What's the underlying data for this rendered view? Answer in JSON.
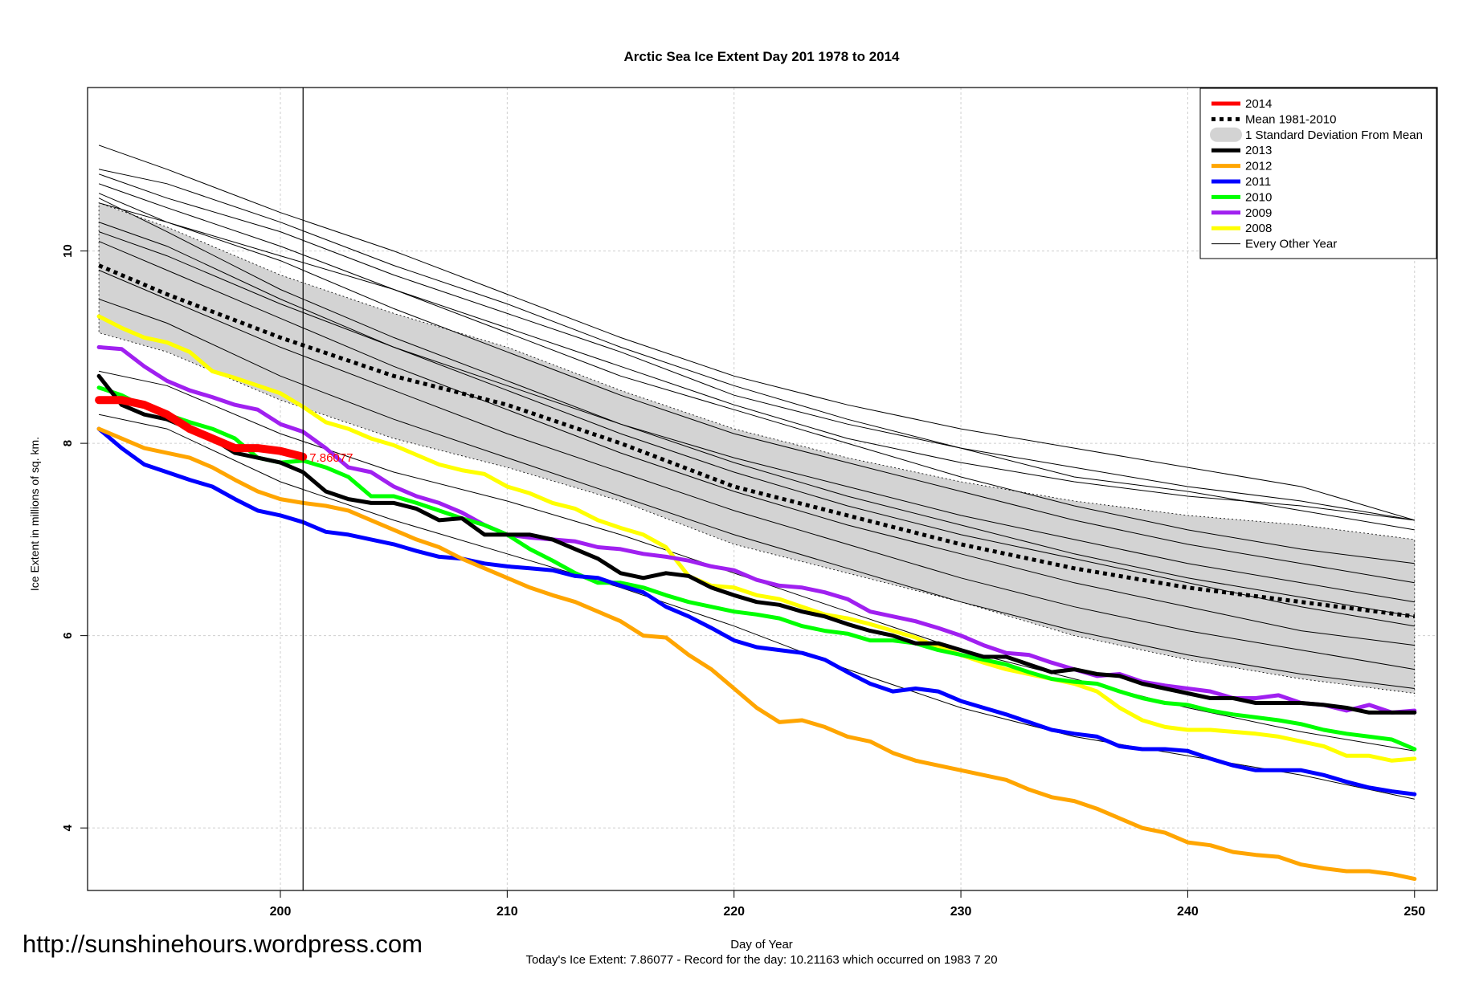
{
  "chart_data": {
    "type": "line",
    "title": "Arctic Sea Ice Extent Day 201 1978 to 2014",
    "xlabel": "Day of Year",
    "ylabel": "Ice Extent in millions of sq. km.",
    "caption": "Today's Ice Extent: 7.86077  - Record for the day: 10.21163 which occurred on 1983 7 20",
    "xlim": [
      191.5,
      251
    ],
    "ylim": [
      3.35,
      11.7
    ],
    "x_ticks": [
      200,
      210,
      220,
      230,
      240,
      250
    ],
    "y_ticks": [
      4,
      6,
      8,
      10
    ],
    "grid": true,
    "legend_position": "top-right",
    "current_day": 201,
    "current_value_label": "7.86077",
    "legend": [
      {
        "label": "2014",
        "color": "#ff0000",
        "style": "thick"
      },
      {
        "label": "Mean 1981-2010",
        "color": "#000000",
        "style": "dotted"
      },
      {
        "label": "1 Standard Deviation From Mean",
        "color": "#d3d3d3",
        "style": "band"
      },
      {
        "label": "2013",
        "color": "#000000",
        "style": "thick"
      },
      {
        "label": "2012",
        "color": "#ffa500",
        "style": "thick"
      },
      {
        "label": "2011",
        "color": "#0000ff",
        "style": "thick"
      },
      {
        "label": "2010",
        "color": "#00ff00",
        "style": "thick"
      },
      {
        "label": "2009",
        "color": "#a020f0",
        "style": "thick"
      },
      {
        "label": "2008",
        "color": "#ffff00",
        "style": "thick"
      },
      {
        "label": "Every Other Year",
        "color": "#000000",
        "style": "thin"
      }
    ],
    "mean": {
      "name": "Mean 1981-2010",
      "x": [
        192,
        195,
        200,
        205,
        210,
        215,
        220,
        225,
        230,
        235,
        240,
        245,
        250
      ],
      "values": [
        9.85,
        9.55,
        9.1,
        8.7,
        8.4,
        8.0,
        7.55,
        7.25,
        6.95,
        6.7,
        6.5,
        6.35,
        6.2
      ]
    },
    "std_band": {
      "x": [
        192,
        195,
        200,
        205,
        210,
        215,
        220,
        225,
        230,
        235,
        240,
        245,
        250
      ],
      "upper": [
        10.5,
        10.25,
        9.75,
        9.35,
        9.0,
        8.55,
        8.15,
        7.85,
        7.6,
        7.4,
        7.25,
        7.15,
        7.0
      ],
      "lower": [
        9.15,
        8.95,
        8.45,
        8.05,
        7.75,
        7.4,
        6.95,
        6.65,
        6.35,
        6.0,
        5.75,
        5.55,
        5.4
      ]
    },
    "series": [
      {
        "name": "2014",
        "color": "#ff0000",
        "x": [
          192,
          193,
          194,
          195,
          196,
          197,
          198,
          199,
          200,
          201
        ],
        "values": [
          8.45,
          8.45,
          8.4,
          8.3,
          8.15,
          8.05,
          7.95,
          7.95,
          7.92,
          7.86
        ]
      },
      {
        "name": "2013",
        "color": "#000000",
        "x": [
          192,
          193,
          194,
          195,
          196,
          197,
          198,
          199,
          200,
          201,
          202,
          203,
          204,
          205,
          206,
          207,
          208,
          209,
          210,
          211,
          212,
          213,
          214,
          215,
          216,
          217,
          218,
          219,
          220,
          221,
          222,
          223,
          224,
          225,
          226,
          227,
          228,
          229,
          230,
          231,
          232,
          233,
          234,
          235,
          236,
          237,
          238,
          239,
          240,
          241,
          242,
          243,
          244,
          245,
          246,
          247,
          248,
          249,
          250
        ],
        "values": [
          8.7,
          8.4,
          8.3,
          8.25,
          8.15,
          8.05,
          7.9,
          7.85,
          7.8,
          7.7,
          7.5,
          7.42,
          7.38,
          7.38,
          7.32,
          7.2,
          7.22,
          7.05,
          7.05,
          7.05,
          7.0,
          6.9,
          6.8,
          6.65,
          6.6,
          6.65,
          6.62,
          6.5,
          6.42,
          6.35,
          6.32,
          6.25,
          6.2,
          6.12,
          6.05,
          6.0,
          5.92,
          5.92,
          5.85,
          5.78,
          5.78,
          5.7,
          5.62,
          5.65,
          5.6,
          5.58,
          5.5,
          5.45,
          5.4,
          5.35,
          5.35,
          5.3,
          5.3,
          5.3,
          5.28,
          5.25,
          5.2,
          5.2,
          5.2
        ]
      },
      {
        "name": "2012",
        "color": "#ffa500",
        "x": [
          192,
          193,
          194,
          195,
          196,
          197,
          198,
          199,
          200,
          201,
          202,
          203,
          204,
          205,
          206,
          207,
          208,
          209,
          210,
          211,
          212,
          213,
          214,
          215,
          216,
          217,
          218,
          219,
          220,
          221,
          222,
          223,
          224,
          225,
          226,
          227,
          228,
          229,
          230,
          231,
          232,
          233,
          234,
          235,
          236,
          237,
          238,
          239,
          240,
          241,
          242,
          243,
          244,
          245,
          246,
          247,
          248,
          249,
          250
        ],
        "values": [
          8.15,
          8.05,
          7.95,
          7.9,
          7.85,
          7.75,
          7.62,
          7.5,
          7.42,
          7.38,
          7.35,
          7.3,
          7.2,
          7.1,
          7.0,
          6.92,
          6.8,
          6.7,
          6.6,
          6.5,
          6.42,
          6.35,
          6.25,
          6.15,
          6.0,
          5.98,
          5.8,
          5.65,
          5.45,
          5.25,
          5.1,
          5.12,
          5.05,
          4.95,
          4.9,
          4.78,
          4.7,
          4.65,
          4.6,
          4.55,
          4.5,
          4.4,
          4.32,
          4.28,
          4.2,
          4.1,
          4.0,
          3.95,
          3.85,
          3.82,
          3.75,
          3.72,
          3.7,
          3.62,
          3.58,
          3.55,
          3.55,
          3.52,
          3.47
        ]
      },
      {
        "name": "2011",
        "color": "#0000ff",
        "x": [
          192,
          193,
          194,
          195,
          196,
          197,
          198,
          199,
          200,
          201,
          202,
          203,
          204,
          205,
          206,
          207,
          208,
          209,
          210,
          211,
          212,
          213,
          214,
          215,
          216,
          217,
          218,
          219,
          220,
          221,
          222,
          223,
          224,
          225,
          226,
          227,
          228,
          229,
          230,
          231,
          232,
          233,
          234,
          235,
          236,
          237,
          238,
          239,
          240,
          241,
          242,
          243,
          244,
          245,
          246,
          247,
          248,
          249,
          250
        ],
        "values": [
          8.15,
          7.95,
          7.78,
          7.7,
          7.62,
          7.55,
          7.42,
          7.3,
          7.25,
          7.18,
          7.08,
          7.05,
          7.0,
          6.95,
          6.88,
          6.82,
          6.8,
          6.75,
          6.72,
          6.7,
          6.68,
          6.62,
          6.6,
          6.52,
          6.45,
          6.3,
          6.2,
          6.08,
          5.95,
          5.88,
          5.85,
          5.82,
          5.75,
          5.62,
          5.5,
          5.42,
          5.45,
          5.42,
          5.32,
          5.25,
          5.18,
          5.1,
          5.02,
          4.98,
          4.95,
          4.85,
          4.82,
          4.82,
          4.8,
          4.72,
          4.65,
          4.6,
          4.6,
          4.6,
          4.55,
          4.48,
          4.42,
          4.38,
          4.35
        ]
      },
      {
        "name": "2010",
        "color": "#00ff00",
        "x": [
          192,
          193,
          194,
          195,
          196,
          197,
          198,
          199,
          200,
          201,
          202,
          203,
          204,
          205,
          206,
          207,
          208,
          209,
          210,
          211,
          212,
          213,
          214,
          215,
          216,
          217,
          218,
          219,
          220,
          221,
          222,
          223,
          224,
          225,
          226,
          227,
          228,
          229,
          230,
          231,
          232,
          233,
          234,
          235,
          236,
          237,
          238,
          239,
          240,
          241,
          242,
          243,
          244,
          245,
          246,
          247,
          248,
          249,
          250
        ],
        "values": [
          8.58,
          8.5,
          8.38,
          8.3,
          8.22,
          8.15,
          8.05,
          7.85,
          7.8,
          7.82,
          7.75,
          7.65,
          7.45,
          7.45,
          7.38,
          7.3,
          7.22,
          7.15,
          7.05,
          6.9,
          6.78,
          6.65,
          6.55,
          6.55,
          6.5,
          6.42,
          6.35,
          6.3,
          6.25,
          6.22,
          6.18,
          6.1,
          6.05,
          6.02,
          5.95,
          5.95,
          5.92,
          5.85,
          5.8,
          5.75,
          5.7,
          5.62,
          5.55,
          5.52,
          5.5,
          5.42,
          5.35,
          5.3,
          5.28,
          5.22,
          5.18,
          5.15,
          5.12,
          5.08,
          5.02,
          4.98,
          4.95,
          4.92,
          4.82
        ]
      },
      {
        "name": "2009",
        "color": "#a020f0",
        "x": [
          192,
          193,
          194,
          195,
          196,
          197,
          198,
          199,
          200,
          201,
          202,
          203,
          204,
          205,
          206,
          207,
          208,
          209,
          210,
          211,
          212,
          213,
          214,
          215,
          216,
          217,
          218,
          219,
          220,
          221,
          222,
          223,
          224,
          225,
          226,
          227,
          228,
          229,
          230,
          231,
          232,
          233,
          234,
          235,
          236,
          237,
          238,
          239,
          240,
          241,
          242,
          243,
          244,
          245,
          246,
          247,
          248,
          249,
          250
        ],
        "values": [
          9.0,
          8.98,
          8.8,
          8.65,
          8.55,
          8.48,
          8.4,
          8.35,
          8.2,
          8.12,
          7.95,
          7.75,
          7.7,
          7.55,
          7.45,
          7.38,
          7.28,
          7.15,
          7.05,
          7.02,
          7.0,
          6.98,
          6.92,
          6.9,
          6.85,
          6.82,
          6.78,
          6.72,
          6.68,
          6.58,
          6.52,
          6.5,
          6.45,
          6.38,
          6.25,
          6.2,
          6.15,
          6.08,
          6.0,
          5.9,
          5.82,
          5.8,
          5.72,
          5.65,
          5.58,
          5.6,
          5.52,
          5.48,
          5.45,
          5.42,
          5.35,
          5.35,
          5.38,
          5.3,
          5.28,
          5.22,
          5.28,
          5.2,
          5.22
        ]
      },
      {
        "name": "2008",
        "color": "#ffff00",
        "x": [
          192,
          193,
          194,
          195,
          196,
          197,
          198,
          199,
          200,
          201,
          202,
          203,
          204,
          205,
          206,
          207,
          208,
          209,
          210,
          211,
          212,
          213,
          214,
          215,
          216,
          217,
          218,
          219,
          220,
          221,
          222,
          223,
          224,
          225,
          226,
          227,
          228,
          229,
          230,
          231,
          232,
          233,
          234,
          235,
          236,
          237,
          238,
          239,
          240,
          241,
          242,
          243,
          244,
          245,
          246,
          247,
          248,
          249,
          250
        ],
        "values": [
          9.32,
          9.2,
          9.1,
          9.05,
          8.95,
          8.75,
          8.68,
          8.6,
          8.52,
          8.38,
          8.22,
          8.15,
          8.05,
          7.98,
          7.88,
          7.78,
          7.72,
          7.68,
          7.55,
          7.48,
          7.38,
          7.32,
          7.2,
          7.12,
          7.05,
          6.92,
          6.62,
          6.52,
          6.5,
          6.42,
          6.38,
          6.3,
          6.22,
          6.18,
          6.12,
          6.05,
          5.98,
          5.88,
          5.8,
          5.72,
          5.65,
          5.6,
          5.55,
          5.5,
          5.42,
          5.25,
          5.12,
          5.05,
          5.02,
          5.02,
          5.0,
          4.98,
          4.95,
          4.9,
          4.85,
          4.75,
          4.75,
          4.7,
          4.72
        ]
      }
    ],
    "every_other_year": {
      "name": "Every Other Year",
      "x": [
        192,
        195,
        200,
        205,
        210,
        215,
        220,
        225,
        230,
        235,
        240,
        245,
        250
      ],
      "lines": [
        [
          10.8,
          10.55,
          10.2,
          9.75,
          9.35,
          8.95,
          8.5,
          8.2,
          7.95,
          7.75,
          7.55,
          7.4,
          7.2
        ],
        [
          10.5,
          10.3,
          9.95,
          9.6,
          9.2,
          8.8,
          8.4,
          8.05,
          7.8,
          7.6,
          7.45,
          7.35,
          7.2
        ],
        [
          10.85,
          10.7,
          10.3,
          9.85,
          9.45,
          9.0,
          8.6,
          8.25,
          7.95,
          7.65,
          7.5,
          7.3,
          7.1
        ],
        [
          10.7,
          10.45,
          10.05,
          9.6,
          9.15,
          8.7,
          8.35,
          8.0,
          7.65,
          7.35,
          7.1,
          6.9,
          6.75
        ],
        [
          10.6,
          10.3,
          9.9,
          9.4,
          8.95,
          8.5,
          8.1,
          7.8,
          7.5,
          7.2,
          6.95,
          6.75,
          6.55
        ],
        [
          10.55,
          10.2,
          9.6,
          9.1,
          8.65,
          8.2,
          7.8,
          7.45,
          7.15,
          6.85,
          6.6,
          6.4,
          6.2
        ],
        [
          10.3,
          10.05,
          9.5,
          9.0,
          8.55,
          8.1,
          7.7,
          7.35,
          7.05,
          6.8,
          6.55,
          6.3,
          6.1
        ],
        [
          10.1,
          9.8,
          9.3,
          8.8,
          8.35,
          7.9,
          7.5,
          7.15,
          6.85,
          6.55,
          6.3,
          6.05,
          5.9
        ],
        [
          9.8,
          9.5,
          9.0,
          8.55,
          8.1,
          7.7,
          7.3,
          6.95,
          6.6,
          6.3,
          6.05,
          5.85,
          5.65
        ],
        [
          9.5,
          9.25,
          8.7,
          8.25,
          7.85,
          7.45,
          7.05,
          6.7,
          6.35,
          6.05,
          5.8,
          5.6,
          5.45
        ],
        [
          8.75,
          8.6,
          8.1,
          7.7,
          7.4,
          7.05,
          6.65,
          6.25,
          5.85,
          5.55,
          5.25,
          5.0,
          4.8
        ],
        [
          8.3,
          8.15,
          7.6,
          7.2,
          6.85,
          6.5,
          6.1,
          5.65,
          5.25,
          4.95,
          4.75,
          4.55,
          4.3
        ],
        [
          11.1,
          10.85,
          10.4,
          10.0,
          9.55,
          9.1,
          8.7,
          8.4,
          8.15,
          7.95,
          7.75,
          7.55,
          7.2
        ],
        [
          10.2,
          9.95,
          9.45,
          9.0,
          8.6,
          8.2,
          7.85,
          7.55,
          7.25,
          7.0,
          6.75,
          6.55,
          6.35
        ]
      ]
    }
  },
  "footer": {
    "url": "http://sunshinehours.wordpress.com"
  }
}
